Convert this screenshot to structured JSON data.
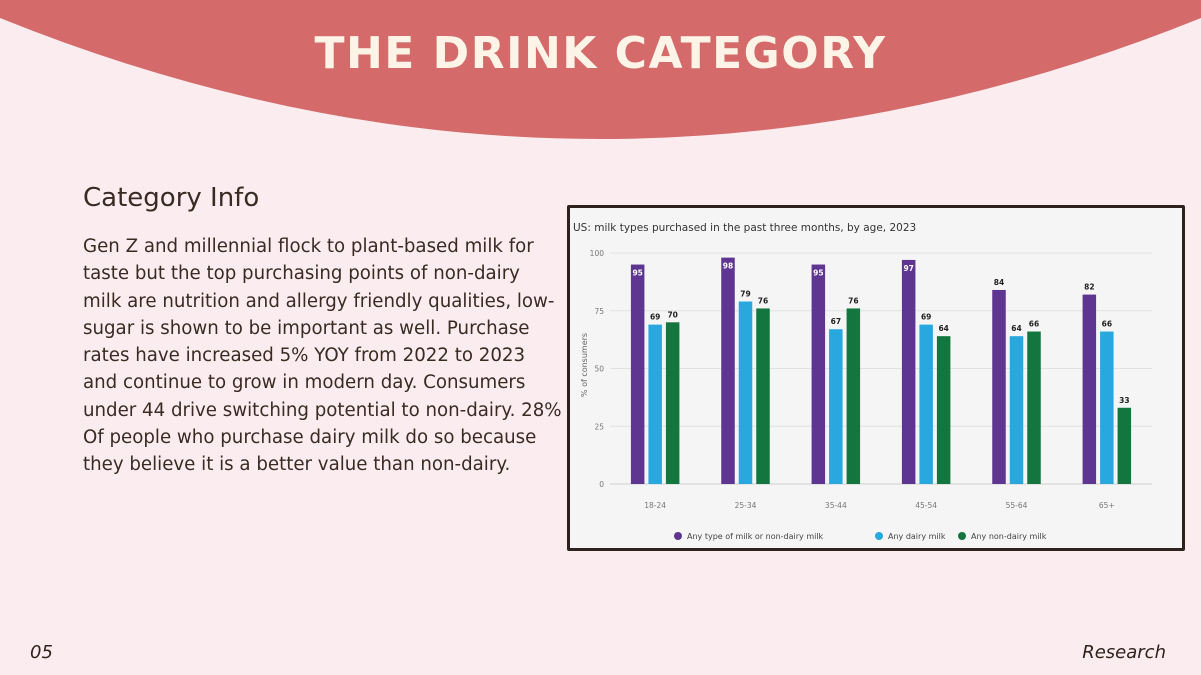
{
  "slide": {
    "title": "THE DRINK CATEGORY",
    "banner_color": "#d46a69",
    "background_color": "#fbecef"
  },
  "info": {
    "heading": "Category Info",
    "body": "Gen Z and millennial flock to plant-based milk for taste but the top purchasing points of non-dairy milk are nutrition and allergy friendly qualities, low-sugar is shown to be important as well. Purchase rates have increased 5% YOY from 2022 to 2023 and continue to grow in modern day. Consumers under 44 drive switching potential to non-dairy. 28% Of people who purchase dairy milk do so because they believe it is a better value than non-dairy."
  },
  "footer": {
    "page_number": "05",
    "section": "Research"
  },
  "chart_data": {
    "type": "bar",
    "title": "US: milk types purchased in the past three months, by age, 2023",
    "ylabel": "% of consumers",
    "xlabel": "",
    "ylim": [
      0,
      100
    ],
    "yticks": [
      0,
      25,
      50,
      75,
      100
    ],
    "grid": true,
    "legend_position": "bottom",
    "categories": [
      "18-24",
      "25-34",
      "35-44",
      "45-54",
      "55-64",
      "65+"
    ],
    "series": [
      {
        "name": "Any type of milk or non-dairy milk",
        "color": "#5e3590",
        "values": [
          95,
          98,
          95,
          97,
          84,
          82
        ]
      },
      {
        "name": "Any dairy milk",
        "color": "#29a8e0",
        "values": [
          69,
          79,
          67,
          69,
          64,
          66
        ]
      },
      {
        "name": "Any non-dairy milk",
        "color": "#12763e",
        "values": [
          70,
          76,
          76,
          64,
          66,
          33
        ]
      }
    ]
  }
}
